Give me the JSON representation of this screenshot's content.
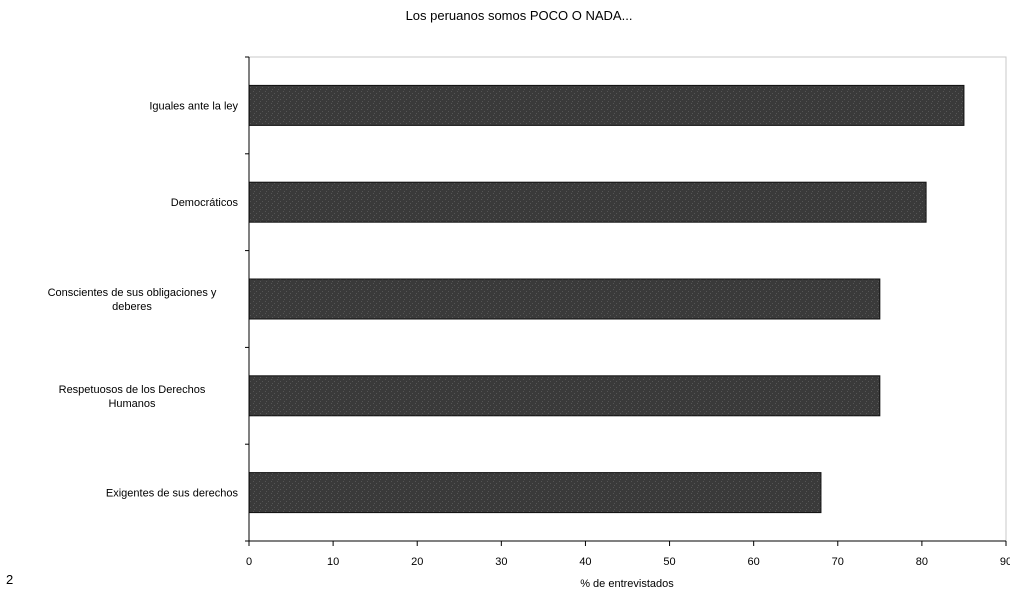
{
  "page_number": "2",
  "chart_data": {
    "type": "bar",
    "orientation": "horizontal",
    "title": "Los peruanos somos POCO O NADA...",
    "xlabel": "% de entrevistados",
    "ylabel": "",
    "xlim": [
      0,
      90
    ],
    "xticks": [
      0,
      10,
      20,
      30,
      40,
      50,
      60,
      70,
      80,
      90
    ],
    "grid": false,
    "legend": "none",
    "bar_color": "#3a3a3a",
    "categories": [
      [
        "Iguales ante la ley"
      ],
      [
        "Democráticos"
      ],
      [
        "Conscientes de sus obligaciones y",
        "deberes"
      ],
      [
        "Respetuosos de los Derechos",
        "Humanos"
      ],
      [
        "Exigentes de sus derechos"
      ]
    ],
    "values": [
      85,
      80.5,
      75,
      75,
      68
    ]
  }
}
